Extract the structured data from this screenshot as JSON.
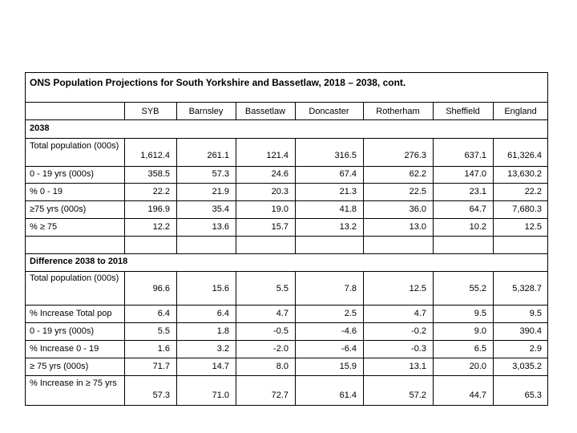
{
  "title": "ONS Population Projections for South Yorkshire and Bassetlaw, 2018 – 2038, cont.",
  "columns": [
    "SYB",
    "Barnsley",
    "Bassetlaw",
    "Doncaster",
    "Rotherham",
    "Sheffield",
    "England"
  ],
  "sections": [
    {
      "heading": "2038",
      "rows": [
        {
          "label": "Total population (000s)",
          "values": [
            "1,612.4",
            "261.1",
            "121.4",
            "316.5",
            "276.3",
            "637.1",
            "61,326.4"
          ]
        },
        {
          "label": "0 - 19 yrs (000s)",
          "values": [
            "358.5",
            "57.3",
            "24.6",
            "67.4",
            "62.2",
            "147.0",
            "13,630.2"
          ]
        },
        {
          "label": "% 0 - 19",
          "values": [
            "22.2",
            "21.9",
            "20.3",
            "21.3",
            "22.5",
            "23.1",
            "22.2"
          ]
        },
        {
          "label": "≥75 yrs (000s)",
          "values": [
            "196.9",
            "35.4",
            "19.0",
            "41.8",
            "36.0",
            "64.7",
            "7,680.3"
          ]
        },
        {
          "label": "% ≥ 75",
          "values": [
            "12.2",
            "13.6",
            "15.7",
            "13.2",
            "13.0",
            "10.2",
            "12.5"
          ]
        }
      ]
    },
    {
      "heading": "Difference 2038 to 2018",
      "rows": [
        {
          "label": "Total population (000s)",
          "values": [
            "96.6",
            "15.6",
            "5.5",
            "7.8",
            "12.5",
            "55.2",
            "5,328.7"
          ]
        },
        {
          "label": "% Increase Total pop",
          "values": [
            "6.4",
            "6.4",
            "4.7",
            "2.5",
            "4.7",
            "9.5",
            "9.5"
          ]
        },
        {
          "label": "0 - 19 yrs (000s)",
          "values": [
            "5.5",
            "1.8",
            "-0.5",
            "-4.6",
            "-0.2",
            "9.0",
            "390.4"
          ]
        },
        {
          "label": "% Increase 0 - 19",
          "values": [
            "1.6",
            "3.2",
            "-2.0",
            "-6.4",
            "-0.3",
            "6.5",
            "2.9"
          ]
        },
        {
          "label": "≥ 75 yrs (000s)",
          "values": [
            "71.7",
            "14.7",
            "8.0",
            "15.9",
            "13.1",
            "20.0",
            "3,035.2"
          ]
        },
        {
          "label": "% Increase in ≥ 75 yrs",
          "values": [
            "57.3",
            "71.0",
            "72.7",
            "61.4",
            "57.2",
            "44.7",
            "65.3"
          ]
        }
      ]
    }
  ]
}
